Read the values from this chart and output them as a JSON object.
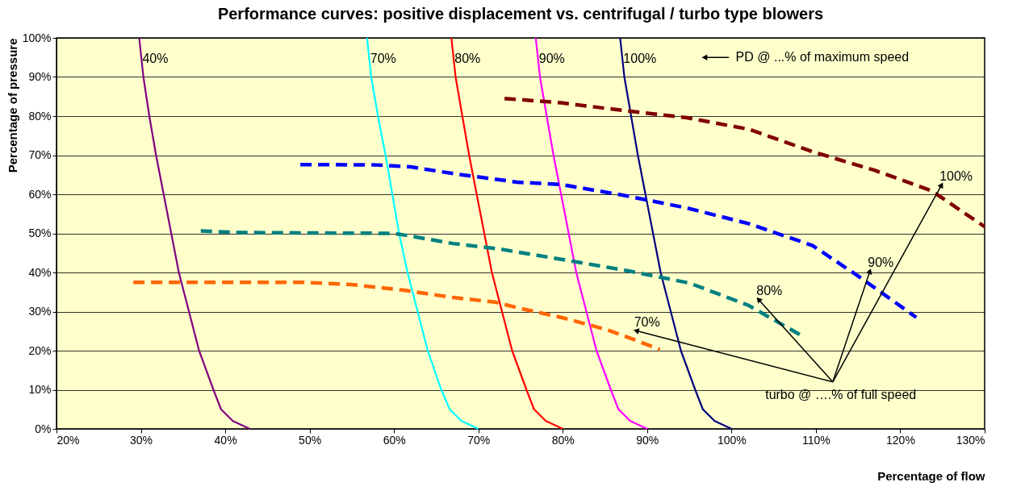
{
  "chart_data": {
    "type": "line",
    "title": "Performance curves: positive displacement vs. centrifugal / turbo type blowers",
    "xlabel": "Percentage of flow",
    "ylabel": "Percentage of pressure",
    "xlim": [
      20,
      130
    ],
    "ylim": [
      0,
      100
    ],
    "xticks": [
      {
        "value": 20,
        "label": "20%"
      },
      {
        "value": 30,
        "label": "30%"
      },
      {
        "value": 40,
        "label": "40%"
      },
      {
        "value": 50,
        "label": "50%"
      },
      {
        "value": 60,
        "label": "60%"
      },
      {
        "value": 70,
        "label": "70%"
      },
      {
        "value": 80,
        "label": "80%"
      },
      {
        "value": 90,
        "label": "90%"
      },
      {
        "value": 100,
        "label": "100%"
      },
      {
        "value": 110,
        "label": "110%"
      },
      {
        "value": 120,
        "label": "120%"
      },
      {
        "value": 130,
        "label": "130%"
      }
    ],
    "yticks": [
      {
        "value": 0,
        "label": "0%"
      },
      {
        "value": 10,
        "label": "10%"
      },
      {
        "value": 20,
        "label": "20%"
      },
      {
        "value": 30,
        "label": "30%"
      },
      {
        "value": 40,
        "label": "40%"
      },
      {
        "value": 50,
        "label": "50%"
      },
      {
        "value": 60,
        "label": "60%"
      },
      {
        "value": 70,
        "label": "70%"
      },
      {
        "value": 80,
        "label": "80%"
      },
      {
        "value": 90,
        "label": "90%"
      },
      {
        "value": 100,
        "label": "100%"
      }
    ],
    "grid": "y",
    "marker": "none",
    "annotations": [
      "PD @ ...% of maximum speed",
      "turbo @ ….% of full speed"
    ],
    "series": [
      {
        "name": "40%",
        "color": "#800080",
        "line_style": "solid",
        "x": [
          29.8,
          30.3,
          31.0,
          31.8,
          32.7,
          33.6,
          34.5,
          35.7,
          36.9,
          38.6,
          39.5,
          40.9,
          42.9
        ],
        "values": [
          100,
          90,
          80,
          70,
          60,
          50,
          40,
          30,
          20,
          10,
          5,
          2,
          0
        ]
      },
      {
        "name": "70%",
        "color": "#00ffff",
        "line_style": "solid",
        "x": [
          56.8,
          57.3,
          58.1,
          59.0,
          59.8,
          60.6,
          61.6,
          62.8,
          64.0,
          65.6,
          66.6,
          68.0,
          70.0
        ],
        "values": [
          100,
          90,
          80,
          70,
          60,
          50,
          40,
          30,
          20,
          10,
          5,
          2,
          0
        ]
      },
      {
        "name": "80%",
        "color": "#ff0000",
        "line_style": "solid",
        "x": [
          66.8,
          67.3,
          68.1,
          68.9,
          69.8,
          70.7,
          71.6,
          72.8,
          74.0,
          75.7,
          76.6,
          78.0,
          80.0
        ],
        "values": [
          100,
          90,
          80,
          70,
          60,
          50,
          40,
          30,
          20,
          10,
          5,
          2,
          0
        ]
      },
      {
        "name": "90%",
        "color": "#ff00ff",
        "line_style": "solid",
        "x": [
          76.8,
          77.3,
          78.1,
          78.9,
          79.8,
          80.7,
          81.6,
          82.8,
          84.0,
          85.7,
          86.6,
          88.0,
          90.0
        ],
        "values": [
          100,
          90,
          80,
          70,
          60,
          50,
          40,
          30,
          20,
          10,
          5,
          2,
          0
        ]
      },
      {
        "name": "100%",
        "color": "#000080",
        "line_style": "solid",
        "x": [
          86.8,
          87.3,
          88.1,
          88.9,
          89.8,
          90.7,
          91.6,
          92.8,
          94.0,
          95.7,
          96.6,
          98.0,
          100.0
        ],
        "values": [
          100,
          90,
          80,
          70,
          60,
          50,
          40,
          30,
          20,
          10,
          5,
          2,
          0
        ]
      },
      {
        "name": "70%",
        "color": "#ff6600",
        "line_style": "dashed",
        "x": [
          29.1,
          49.1,
          55,
          61,
          67,
          72,
          75,
          80,
          85,
          87.5,
          91.5
        ],
        "values": [
          37.5,
          37.5,
          36.9,
          35.5,
          33.6,
          32.4,
          30.8,
          28.4,
          25.5,
          23.6,
          20.3
        ]
      },
      {
        "name": "80%",
        "color": "#008080",
        "line_style": "dashed",
        "x": [
          37.1,
          42,
          50,
          60,
          62,
          67,
          72.5,
          80,
          87.5,
          95,
          102,
          108.5
        ],
        "values": [
          50.6,
          50.2,
          50.1,
          50.0,
          49.3,
          47.4,
          46.0,
          43.3,
          40.5,
          37.3,
          31.6,
          23.6
        ]
      },
      {
        "name": "90%",
        "color": "#0000ff",
        "line_style": "dashed",
        "x": [
          48.9,
          58,
          62,
          67.3,
          74.6,
          79.8,
          87.3,
          94.7,
          102,
          109.6,
          115.2,
          121.9
        ],
        "values": [
          67.6,
          67.5,
          67.0,
          65.2,
          63.1,
          62.5,
          59.7,
          56.5,
          52.5,
          46.9,
          38.8,
          28.5
        ]
      },
      {
        "name": "100%",
        "color": "#800000",
        "line_style": "dashed",
        "x": [
          73.1,
          79.8,
          87.3,
          94.7,
          102.1,
          109.6,
          117,
          123.7,
          130
        ],
        "values": [
          84.5,
          83.4,
          81.4,
          79.6,
          76.6,
          70.9,
          66.1,
          60.9,
          51.7
        ]
      }
    ]
  }
}
